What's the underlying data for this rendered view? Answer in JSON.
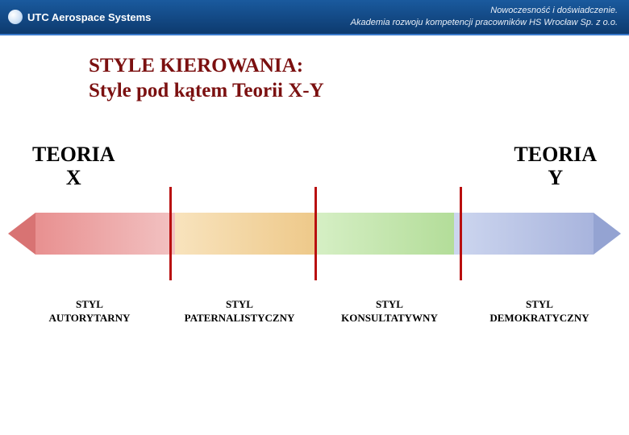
{
  "header": {
    "logo_text": "UTC Aerospace Systems",
    "right_line1": "Nowoczesność i doświadczenie.",
    "right_line2": "Akademia rozwoju kompetencji pracowników HS Wrocław Sp. z o.o."
  },
  "title": {
    "line1": "STYLE KIEROWANIA:",
    "line2": "Style pod kątem Teorii X-Y"
  },
  "theories": {
    "left": "TEORIA\nX",
    "right": "TEORIA\nY"
  },
  "spectrum": {
    "segments": [
      {
        "gradient_from": "#f2c2c2",
        "gradient_to": "#e89090",
        "direction": "to left"
      },
      {
        "gradient_from": "#f8e3bd",
        "gradient_to": "#eec98a",
        "direction": "to right"
      },
      {
        "gradient_from": "#d6efc5",
        "gradient_to": "#b3dd99",
        "direction": "to right"
      },
      {
        "gradient_from": "#cdd6ef",
        "gradient_to": "#a8b4dd",
        "direction": "to right"
      }
    ],
    "arrow_left_color": "#d87373",
    "arrow_right_color": "#94a3d2",
    "divider_color": "#b90f0f",
    "divider_positions_pct": [
      26.0,
      50.0,
      74.0
    ]
  },
  "styles": [
    "STYL\nAUTORYTARNY",
    "STYL\nPATERNALISTYCZNY",
    "STYL\nKONSULTATYWNY",
    "STYL\nDEMOKRATYCZNY"
  ]
}
